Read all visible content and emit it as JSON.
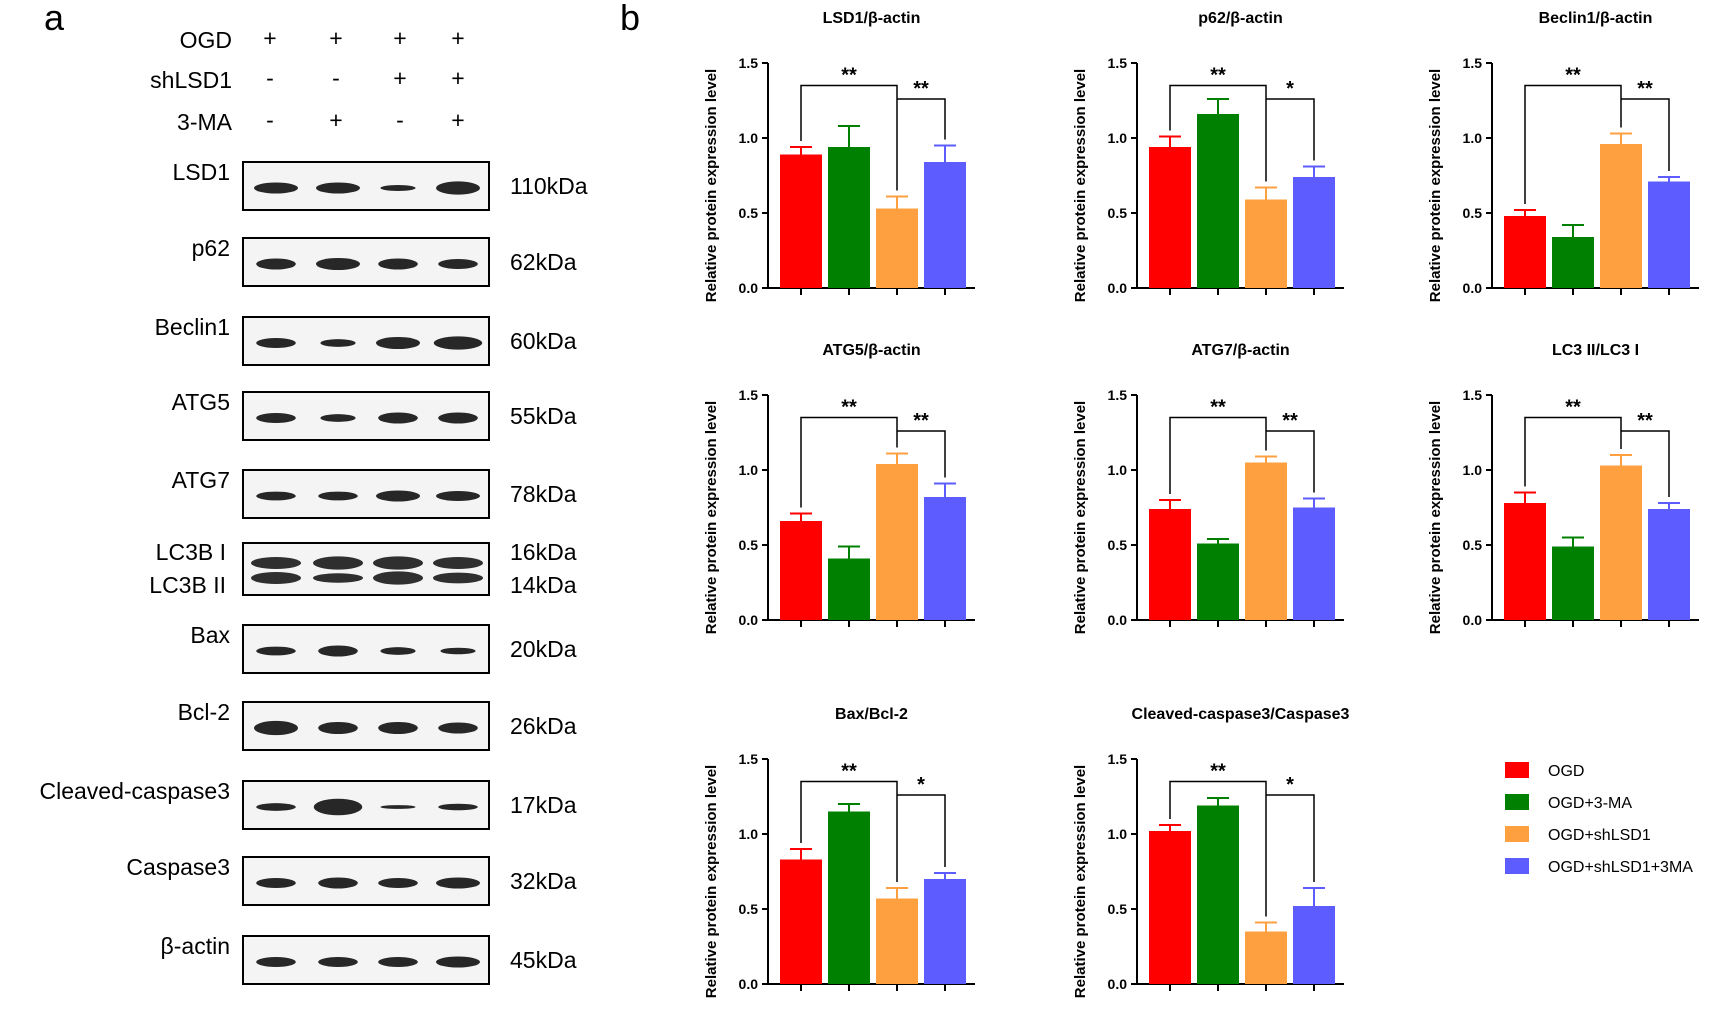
{
  "panel_a": {
    "label": "a",
    "conditions": [
      {
        "name": "OGD",
        "marks": [
          "+",
          "+",
          "+",
          "+"
        ]
      },
      {
        "name": "shLSD1",
        "marks": [
          "-",
          "-",
          "+",
          "+"
        ]
      },
      {
        "name": "3-MA",
        "marks": [
          "-",
          "+",
          "-",
          "+"
        ]
      }
    ],
    "blots": [
      {
        "name": "LSD1",
        "size": "110kDa"
      },
      {
        "name": "p62",
        "size": "62kDa"
      },
      {
        "name": "Beclin1",
        "size": "60kDa"
      },
      {
        "name": "ATG5",
        "size": "55kDa"
      },
      {
        "name": "ATG7",
        "size": "78kDa"
      },
      {
        "name": "LC3B I",
        "size": "16kDa",
        "name2": "LC3B II",
        "size2": "14kDa"
      },
      {
        "name": "Bax",
        "size": "20kDa"
      },
      {
        "name": "Bcl-2",
        "size": "26kDa"
      },
      {
        "name": "Cleaved-caspase3",
        "size": "17kDa"
      },
      {
        "name": "Caspase3",
        "size": "32kDa"
      },
      {
        "name": "β-actin",
        "size": "45kDa"
      }
    ]
  },
  "panel_b": {
    "label": "b",
    "ylabel": "Relative protein expression level",
    "yticks": [
      "0.0",
      "0.5",
      "1.0",
      "1.5"
    ],
    "legend": [
      {
        "name": "OGD",
        "color": "#ff0000"
      },
      {
        "name": "OGD+3-MA",
        "color": "#008000"
      },
      {
        "name": "OGD+shLSD1",
        "color": "#ffa040"
      },
      {
        "name": "OGD+shLSD1+3MA",
        "color": "#5c5cff"
      }
    ]
  },
  "chart_data": [
    {
      "type": "bar",
      "title": "LSD1/β-actin",
      "ylabel": "Relative protein expression level",
      "ylim": [
        0,
        1.5
      ],
      "categories": [
        "OGD",
        "OGD+3-MA",
        "OGD+shLSD1",
        "OGD+shLSD1+3MA"
      ],
      "values": [
        0.89,
        0.94,
        0.53,
        0.84
      ],
      "errors": [
        0.05,
        0.14,
        0.08,
        0.11
      ],
      "sig": [
        "**",
        "**"
      ]
    },
    {
      "type": "bar",
      "title": "p62/β-actin",
      "ylabel": "Relative protein expression level",
      "ylim": [
        0,
        1.5
      ],
      "categories": [
        "OGD",
        "OGD+3-MA",
        "OGD+shLSD1",
        "OGD+shLSD1+3MA"
      ],
      "values": [
        0.94,
        1.16,
        0.59,
        0.74
      ],
      "errors": [
        0.07,
        0.1,
        0.08,
        0.07
      ],
      "sig": [
        "**",
        "*"
      ]
    },
    {
      "type": "bar",
      "title": "Beclin1/β-actin",
      "ylabel": "Relative protein expression level",
      "ylim": [
        0,
        1.5
      ],
      "categories": [
        "OGD",
        "OGD+3-MA",
        "OGD+shLSD1",
        "OGD+shLSD1+3MA"
      ],
      "values": [
        0.48,
        0.34,
        0.96,
        0.71
      ],
      "errors": [
        0.04,
        0.08,
        0.07,
        0.03
      ],
      "sig": [
        "**",
        "**"
      ]
    },
    {
      "type": "bar",
      "title": "ATG5/β-actin",
      "ylabel": "Relative protein expression level",
      "ylim": [
        0,
        1.5
      ],
      "categories": [
        "OGD",
        "OGD+3-MA",
        "OGD+shLSD1",
        "OGD+shLSD1+3MA"
      ],
      "values": [
        0.66,
        0.41,
        1.04,
        0.82
      ],
      "errors": [
        0.05,
        0.08,
        0.07,
        0.09
      ],
      "sig": [
        "**",
        "**"
      ]
    },
    {
      "type": "bar",
      "title": "ATG7/β-actin",
      "ylabel": "Relative protein expression level",
      "ylim": [
        0,
        1.5
      ],
      "categories": [
        "OGD",
        "OGD+3-MA",
        "OGD+shLSD1",
        "OGD+shLSD1+3MA"
      ],
      "values": [
        0.74,
        0.51,
        1.05,
        0.75
      ],
      "errors": [
        0.06,
        0.03,
        0.04,
        0.06
      ],
      "sig": [
        "**",
        "**"
      ]
    },
    {
      "type": "bar",
      "title": "LC3 II/LC3 I",
      "ylabel": "Relative protein expression level",
      "ylim": [
        0,
        1.5
      ],
      "categories": [
        "OGD",
        "OGD+3-MA",
        "OGD+shLSD1",
        "OGD+shLSD1+3MA"
      ],
      "values": [
        0.78,
        0.49,
        1.03,
        0.74
      ],
      "errors": [
        0.07,
        0.06,
        0.07,
        0.04
      ],
      "sig": [
        "**",
        "**"
      ]
    },
    {
      "type": "bar",
      "title": "Bax/Bcl-2",
      "ylabel": "Relative protein expression level",
      "ylim": [
        0,
        1.5
      ],
      "categories": [
        "OGD",
        "OGD+3-MA",
        "OGD+shLSD1",
        "OGD+shLSD1+3MA"
      ],
      "values": [
        0.83,
        1.15,
        0.57,
        0.7
      ],
      "errors": [
        0.07,
        0.05,
        0.07,
        0.04
      ],
      "sig": [
        "**",
        "*"
      ]
    },
    {
      "type": "bar",
      "title": "Cleaved-caspase3/Caspase3",
      "ylabel": "Relative protein expression level",
      "ylim": [
        0,
        1.5
      ],
      "categories": [
        "OGD",
        "OGD+3-MA",
        "OGD+shLSD1",
        "OGD+shLSD1+3MA"
      ],
      "values": [
        1.02,
        1.19,
        0.35,
        0.52
      ],
      "errors": [
        0.04,
        0.05,
        0.06,
        0.12
      ],
      "sig": [
        "**",
        "*"
      ]
    }
  ]
}
